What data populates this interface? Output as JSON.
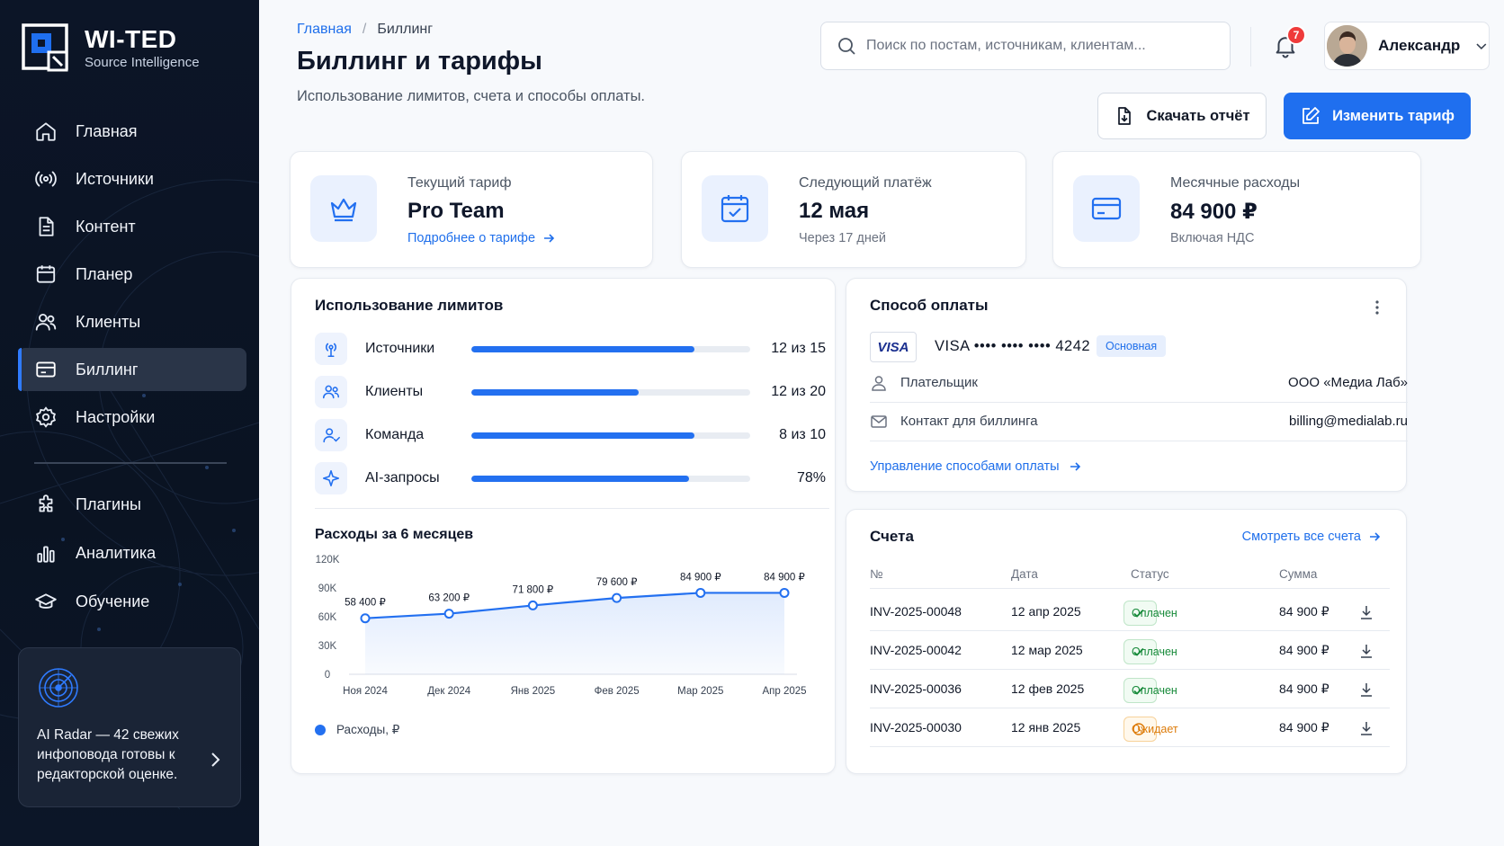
{
  "app": {
    "brand": "WI-TED",
    "brand_sub": "Source Intelligence"
  },
  "sidebar": {
    "items": [
      {
        "label": "Главная",
        "icon": "home-icon"
      },
      {
        "label": "Источники",
        "icon": "broadcast-icon"
      },
      {
        "label": "Контент",
        "icon": "document-icon"
      },
      {
        "label": "Планер",
        "icon": "calendar-icon"
      },
      {
        "label": "Клиенты",
        "icon": "users-icon"
      },
      {
        "label": "Биллинг",
        "icon": "billing-icon",
        "active": true
      },
      {
        "label": "Настройки",
        "icon": "gear-icon"
      }
    ],
    "secondary": [
      {
        "label": "Плагины",
        "icon": "puzzle-icon"
      },
      {
        "label": "Аналитика",
        "icon": "bar-chart-icon"
      },
      {
        "label": "Обучение",
        "icon": "graduation-cap-icon"
      }
    ],
    "promo": {
      "text": "AI Radar — 42 свежих инфоповода готовы к редакторской оценке.",
      "icon": "radar-icon"
    }
  },
  "header": {
    "breadcrumb": [
      "Главная",
      "Биллинг"
    ],
    "title": "Биллинг и тарифы",
    "subtitle": "Использование лимитов, счета и способы оплаты.",
    "search_placeholder": "Поиск по постам, источникам, клиентам...",
    "notifications": "7",
    "user_name": "Александр",
    "download_label": "Скачать отчёт",
    "change_label": "Изменить тариф"
  },
  "stats": {
    "plan": {
      "label": "Текущий тариф",
      "value": "Pro Team",
      "link": "Подробнее о тарифе"
    },
    "next": {
      "label": "Следующий платёж",
      "value": "12 мая",
      "note": "Через 17 дней"
    },
    "monthly": {
      "label": "Месячные расходы",
      "value": "84 900 ₽",
      "note": "Включая НДС"
    }
  },
  "limits": {
    "title": "Использование лимитов",
    "rows": [
      {
        "label": "Источники",
        "value": "12 из 15",
        "fraction": 0.8,
        "icon": "antenna-icon"
      },
      {
        "label": "Клиенты",
        "value": "12 из 20",
        "fraction": 0.6,
        "icon": "users-icon"
      },
      {
        "label": "Команда",
        "value": "8 из 10",
        "fraction": 0.8,
        "icon": "team-icon"
      },
      {
        "label": "AI-запросы",
        "value": "78%",
        "fraction": 0.78,
        "icon": "sparkle-icon"
      }
    ]
  },
  "chart_data": {
    "type": "area",
    "title": "Расходы за 6 месяцев",
    "categories": [
      "Ноя 2024",
      "Дек 2024",
      "Янв 2025",
      "Фев 2025",
      "Мар 2025",
      "Апр 2025"
    ],
    "series": [
      {
        "name": "Расходы, ₽",
        "values": [
          58400,
          63200,
          71800,
          79600,
          84900,
          84900
        ],
        "labels": [
          "58 400 ₽",
          "63 200 ₽",
          "71 800 ₽",
          "79 600 ₽",
          "84 900 ₽",
          "84 900 ₽"
        ]
      }
    ],
    "yticks": [
      "0",
      "30K",
      "60K",
      "90K",
      "120K"
    ],
    "ylim": [
      0,
      120000
    ],
    "color": "#2370f0",
    "legend": "bottom-left"
  },
  "payment": {
    "title": "Способ оплаты",
    "card_brand": "VISA",
    "card_number": "VISA  •••• •••• •••• 4242",
    "badge": "Основная",
    "payer_label": "Плательщик",
    "payer_value": "ООО «Медиа Лаб»",
    "contact_label": "Контакт для биллинга",
    "contact_value": "billing@medialab.ru",
    "manage_link": "Управление способами оплаты"
  },
  "invoices": {
    "title": "Счета",
    "all_link": "Смотреть все счета",
    "columns": [
      "№",
      "Дата",
      "Статус",
      "Сумма"
    ],
    "rows": [
      {
        "id": "INV-2025-00048",
        "date": "12 апр 2025",
        "status": "Оплачен",
        "amount": "84 900 ₽",
        "state": "paid"
      },
      {
        "id": "INV-2025-00042",
        "date": "12 мар 2025",
        "status": "Оплачен",
        "amount": "84 900 ₽",
        "state": "paid"
      },
      {
        "id": "INV-2025-00036",
        "date": "12 фев 2025",
        "status": "Оплачен",
        "amount": "84 900 ₽",
        "state": "paid"
      },
      {
        "id": "INV-2025-00030",
        "date": "12 янв 2025",
        "status": "Ожидает",
        "amount": "84 900 ₽",
        "state": "pending"
      }
    ]
  },
  "colors": {
    "accent": "#1f6fef",
    "sidebar_bg": "#0c1527",
    "paid": "#178a3a",
    "pending": "#dd7b09"
  }
}
